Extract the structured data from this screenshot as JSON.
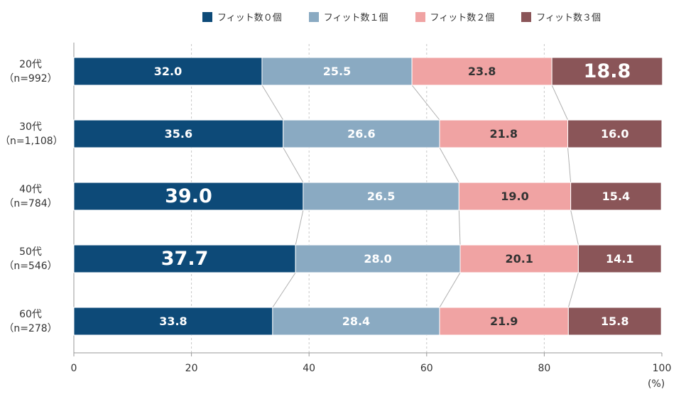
{
  "chart_data": {
    "type": "bar",
    "orientation": "horizontal",
    "stacked": true,
    "percent_stacked": true,
    "categories": [
      {
        "name": "20代",
        "n": "（n=992）"
      },
      {
        "name": "30代",
        "n": "（n=1,108）"
      },
      {
        "name": "40代",
        "n": "（n=784）"
      },
      {
        "name": "50代",
        "n": "（n=546）"
      },
      {
        "name": "60代",
        "n": "（n=278）"
      }
    ],
    "series": [
      {
        "name": "フィット数０個",
        "color": "#0d4a78",
        "values": [
          32.0,
          35.6,
          39.0,
          37.7,
          33.8
        ]
      },
      {
        "name": "フィット数１個",
        "color": "#8aaac2",
        "values": [
          25.5,
          26.6,
          26.5,
          28.0,
          28.4
        ]
      },
      {
        "name": "フィット数２個",
        "color": "#f0a3a3",
        "values": [
          23.8,
          21.8,
          19.0,
          20.1,
          21.9
        ]
      },
      {
        "name": "フィット数３個",
        "color": "#8a5558",
        "values": [
          18.8,
          16.0,
          15.4,
          14.1,
          15.8
        ]
      }
    ],
    "emphasized": [
      [
        0,
        3
      ],
      [
        2,
        0
      ],
      [
        3,
        0
      ]
    ],
    "xlim": [
      0,
      100
    ],
    "xticks": [
      "0",
      "20",
      "40",
      "60",
      "80",
      "100"
    ],
    "xunit": "(%)",
    "grid": "vertical dashed",
    "connector_lines": true,
    "legend": "top"
  }
}
